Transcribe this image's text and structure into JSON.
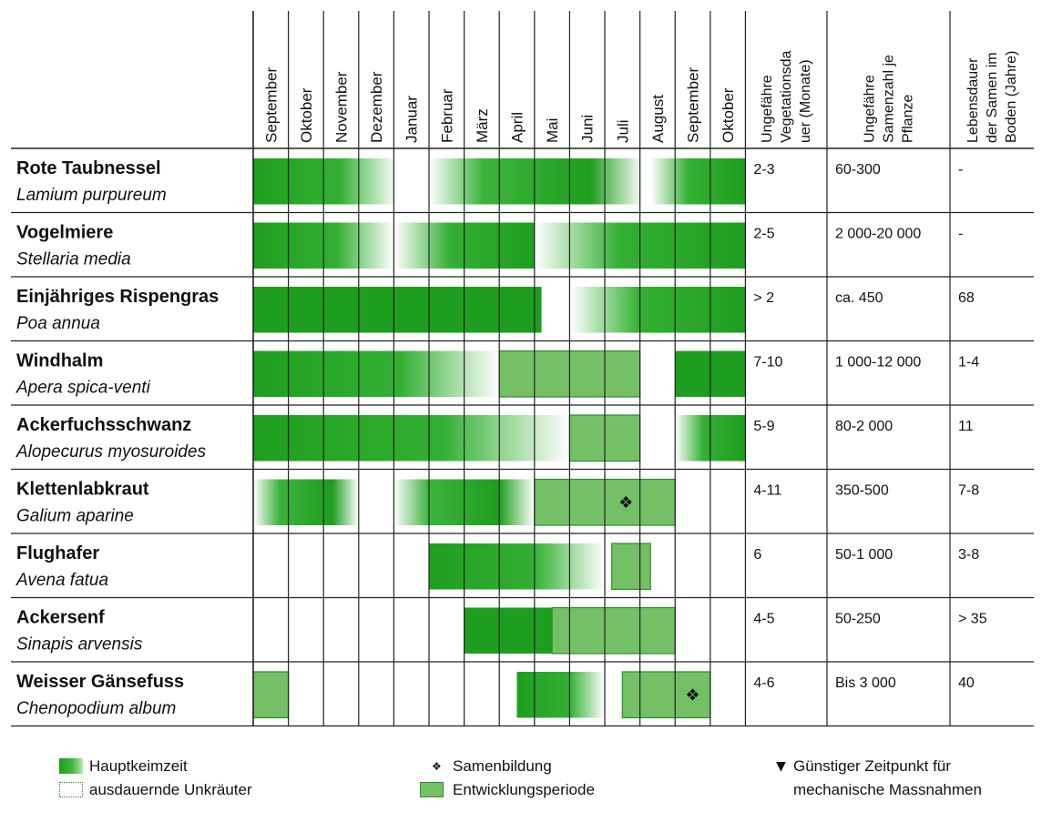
{
  "chart_data": {
    "type": "table",
    "months": [
      "September",
      "Oktober",
      "November",
      "Dezember",
      "Januar",
      "Februar",
      "März",
      "April",
      "Mai",
      "Juni",
      "Juli",
      "August",
      "September",
      "Oktober"
    ],
    "extra_columns": [
      "Ungefähre Vegetationsdauer (Monate)",
      "Ungefähre Samenzahl je Pflanze",
      "Lebensdauer der Samen im Boden (Jahre)"
    ],
    "extra_column_lines": [
      [
        "Ungefähre",
        "Vegetationsda",
        "uer (Monate)"
      ],
      [
        "Ungefähre",
        "Samenzahl je",
        "Pflanze"
      ],
      [
        "Lebensdauer",
        "der Samen im",
        "Boden (Jahre)"
      ]
    ],
    "colors": {
      "keim": "#1e9e1e",
      "dev": "#74c065",
      "grid": "#222222"
    },
    "rows": [
      {
        "name": "Rote Taubnessel",
        "latin": "Lamium purpureum",
        "veg": "2-3",
        "seeds": "60-300",
        "life": "-",
        "bars": [
          {
            "start": 0,
            "end": 4.1,
            "kind": "keim",
            "fade": "right"
          },
          {
            "start": 5.0,
            "end": 11.1,
            "kind": "keim",
            "fade": "left-right"
          },
          {
            "start": 11.3,
            "end": 14,
            "kind": "keim",
            "fade": "left"
          }
        ]
      },
      {
        "name": "Vogelmiere",
        "latin": "Stellaria media",
        "veg": "2-5",
        "seeds": "2 000-20 000",
        "life": "-",
        "bars": [
          {
            "start": 0,
            "end": 4.0,
            "kind": "keim",
            "fade": "right"
          },
          {
            "start": 4.0,
            "end": 8.0,
            "kind": "keim",
            "fade": "left"
          },
          {
            "start": 8.0,
            "end": 14,
            "kind": "keim",
            "fade": "left"
          }
        ]
      },
      {
        "name": "Einjähriges  Rispengras",
        "latin": "Poa annua",
        "veg": "> 2",
        "seeds": "ca. 450",
        "life": "68",
        "bars": [
          {
            "start": 0,
            "end": 8.2,
            "kind": "keim",
            "fade": "none"
          },
          {
            "start": 9.0,
            "end": 14,
            "kind": "keim",
            "fade": "left"
          }
        ]
      },
      {
        "name": "Windhalm",
        "latin": "Apera spica-venti",
        "veg": "7-10",
        "seeds": "1 000-12 000",
        "life": "1-4",
        "bars": [
          {
            "start": 0,
            "end": 7.0,
            "kind": "keim",
            "fade": "right"
          },
          {
            "start": 7.0,
            "end": 11.0,
            "kind": "dev",
            "fade": "none"
          },
          {
            "start": 12.0,
            "end": 14,
            "kind": "keim",
            "fade": "none"
          }
        ]
      },
      {
        "name": "Ackerfuchsschwanz",
        "latin": "Alopecurus myosuroides",
        "veg": "5-9",
        "seeds": "80-2 000",
        "life": "11",
        "bars": [
          {
            "start": 0,
            "end": 9.0,
            "kind": "keim",
            "fade": "right"
          },
          {
            "start": 9.0,
            "end": 11.0,
            "kind": "dev",
            "fade": "none"
          },
          {
            "start": 12.0,
            "end": 14,
            "kind": "keim",
            "fade": "left"
          }
        ]
      },
      {
        "name": "Klettenlabkraut",
        "latin": "Galium aparine",
        "veg": "4-11",
        "seeds": "350-500",
        "life": "7-8",
        "bars": [
          {
            "start": 0,
            "end": 3.0,
            "kind": "keim",
            "fade": "left-right"
          },
          {
            "start": 4.0,
            "end": 8.0,
            "kind": "keim",
            "fade": "left-right"
          },
          {
            "start": 8.0,
            "end": 12.0,
            "kind": "dev",
            "fade": "none"
          }
        ],
        "seed_at": 10.6
      },
      {
        "name": "Flughafer",
        "latin": "Avena fatua",
        "veg": "6",
        "seeds": "50-1 000",
        "life": "3-8",
        "bars": [
          {
            "start": 5.0,
            "end": 10.0,
            "kind": "keim",
            "fade": "right"
          },
          {
            "start": 10.2,
            "end": 11.3,
            "kind": "dev",
            "fade": "none"
          }
        ]
      },
      {
        "name": "Ackersenf",
        "latin": "Sinapis arvensis",
        "veg": "4-5",
        "seeds": "50-250",
        "life": "> 35",
        "bars": [
          {
            "start": 6.0,
            "end": 8.5,
            "kind": "keim",
            "fade": "none"
          },
          {
            "start": 8.5,
            "end": 12.0,
            "kind": "dev",
            "fade": "none"
          }
        ]
      },
      {
        "name": "Weisser Gänsefuss",
        "latin": "Chenopodium album",
        "veg": "4-6",
        "seeds": "Bis 3 000",
        "life": "40",
        "bars": [
          {
            "start": 0,
            "end": 1.0,
            "kind": "dev",
            "fade": "none"
          },
          {
            "start": 7.5,
            "end": 10.0,
            "kind": "keim",
            "fade": "right"
          },
          {
            "start": 10.5,
            "end": 13.0,
            "kind": "dev",
            "fade": "none"
          }
        ],
        "seed_at": 12.5
      }
    ]
  },
  "legend": {
    "keim_label": "Hauptkeimzeit",
    "ausdauernd_label": "ausdauernde  Unkräuter",
    "seed_label": "Samenbildung",
    "dev_label": "Entwicklungsperiode",
    "timing_label_1": "Günstiger  Zeitpunkt  für",
    "timing_label_2": "mechanische  Massnahmen",
    "seed_symbol": "❖",
    "timing_symbol": "▼"
  }
}
